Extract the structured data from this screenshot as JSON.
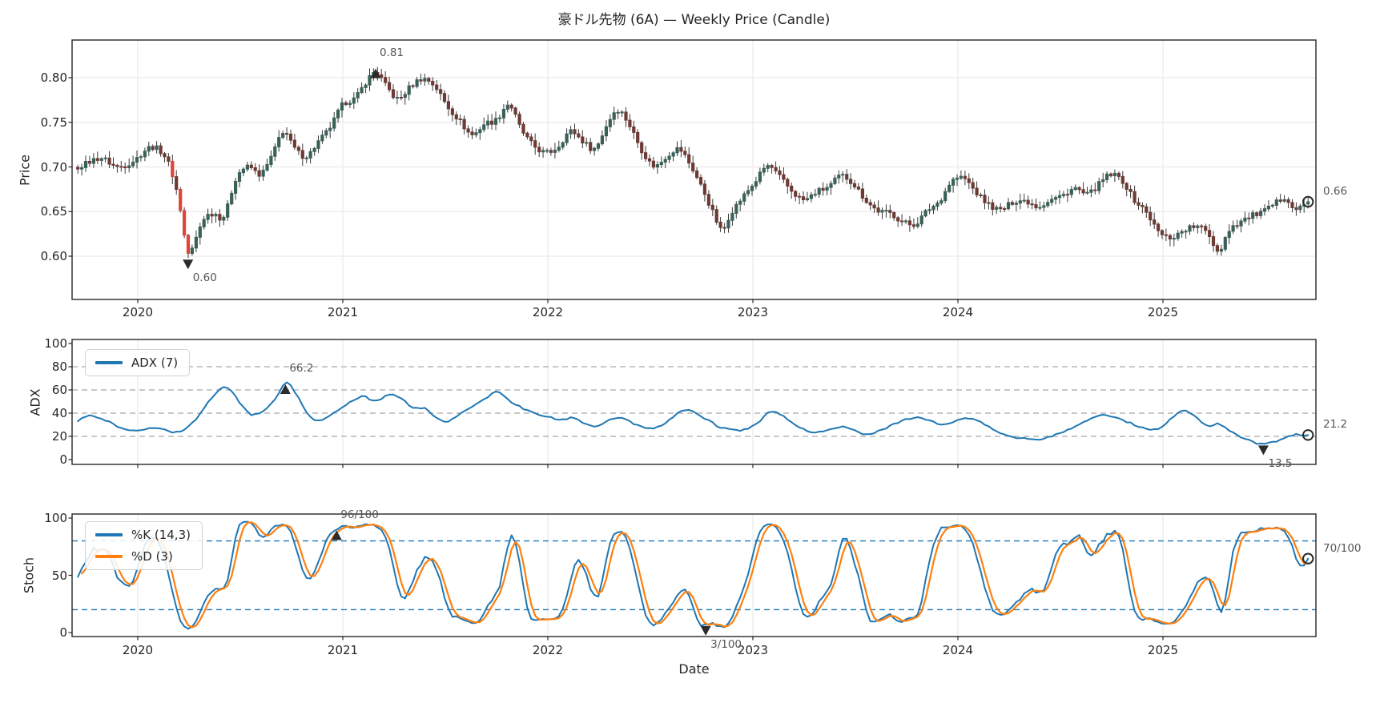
{
  "xlabel": "Date",
  "x_ticks": [
    2020,
    2021,
    2022,
    2023,
    2024,
    2025
  ],
  "colors": {
    "adx_line": "#1f77b4",
    "k_line": "#1f77b4",
    "d_line": "#ff7f0e",
    "candle_up": "#3a6159",
    "candle_down": "#6d3a34",
    "candle_up_bright": "#1fa393",
    "candle_down_bright": "#df4438",
    "wick": "#3a3a3a",
    "frame": "#262626",
    "grid_light": "#eaeaea",
    "grid_dashed": "#a8a8a8",
    "stoch_hline": "#1f77b4",
    "annotation_text": "#555555",
    "marker": "#2b2b2b"
  },
  "chart_data": [
    {
      "panel": "price",
      "type": "candlestick",
      "title": "豪ドル先物 (6A) — Weekly Price (Candle)",
      "ylabel": "Price",
      "freq": "weekly",
      "ylim": [
        0.552,
        0.842
      ],
      "yticks": [
        0.6,
        0.65,
        0.7,
        0.75,
        0.8
      ],
      "x_range_years": [
        2019.7,
        2025.75
      ],
      "anchors": [
        [
          2019.4,
          0.698
        ],
        [
          2019.5,
          0.692
        ],
        [
          2019.58,
          0.7
        ],
        [
          2019.66,
          0.696
        ],
        [
          2019.74,
          0.703
        ],
        [
          2019.82,
          0.71
        ],
        [
          2019.9,
          0.7
        ],
        [
          2019.98,
          0.707
        ],
        [
          2020.06,
          0.722
        ],
        [
          2020.12,
          0.716
        ],
        [
          2020.16,
          0.698
        ],
        [
          2020.2,
          0.662
        ],
        [
          2020.245,
          0.604
        ],
        [
          2020.28,
          0.618
        ],
        [
          2020.32,
          0.642
        ],
        [
          2020.37,
          0.648
        ],
        [
          2020.42,
          0.645
        ],
        [
          2020.48,
          0.688
        ],
        [
          2020.54,
          0.7
        ],
        [
          2020.6,
          0.692
        ],
        [
          2020.66,
          0.715
        ],
        [
          2020.71,
          0.74
        ],
        [
          2020.76,
          0.722
        ],
        [
          2020.82,
          0.712
        ],
        [
          2020.88,
          0.728
        ],
        [
          2020.94,
          0.745
        ],
        [
          2021.0,
          0.77
        ],
        [
          2021.06,
          0.777
        ],
        [
          2021.12,
          0.797
        ],
        [
          2021.16,
          0.806
        ],
        [
          2021.22,
          0.788
        ],
        [
          2021.27,
          0.776
        ],
        [
          2021.33,
          0.79
        ],
        [
          2021.39,
          0.799
        ],
        [
          2021.45,
          0.79
        ],
        [
          2021.51,
          0.768
        ],
        [
          2021.57,
          0.752
        ],
        [
          2021.63,
          0.736
        ],
        [
          2021.69,
          0.748
        ],
        [
          2021.75,
          0.753
        ],
        [
          2021.81,
          0.77
        ],
        [
          2021.87,
          0.742
        ],
        [
          2021.93,
          0.724
        ],
        [
          2021.99,
          0.716
        ],
        [
          2022.05,
          0.723
        ],
        [
          2022.11,
          0.74
        ],
        [
          2022.17,
          0.729
        ],
        [
          2022.23,
          0.721
        ],
        [
          2022.29,
          0.748
        ],
        [
          2022.34,
          0.764
        ],
        [
          2022.4,
          0.746
        ],
        [
          2022.46,
          0.718
        ],
        [
          2022.52,
          0.701
        ],
        [
          2022.58,
          0.712
        ],
        [
          2022.64,
          0.72
        ],
        [
          2022.7,
          0.7
        ],
        [
          2022.76,
          0.673
        ],
        [
          2022.81,
          0.647
        ],
        [
          2022.85,
          0.629
        ],
        [
          2022.89,
          0.648
        ],
        [
          2022.95,
          0.666
        ],
        [
          2023.01,
          0.683
        ],
        [
          2023.07,
          0.701
        ],
        [
          2023.13,
          0.689
        ],
        [
          2023.19,
          0.673
        ],
        [
          2023.25,
          0.663
        ],
        [
          2023.31,
          0.672
        ],
        [
          2023.37,
          0.678
        ],
        [
          2023.43,
          0.69
        ],
        [
          2023.49,
          0.681
        ],
        [
          2023.55,
          0.663
        ],
        [
          2023.61,
          0.651
        ],
        [
          2023.67,
          0.648
        ],
        [
          2023.73,
          0.639
        ],
        [
          2023.79,
          0.636
        ],
        [
          2023.85,
          0.651
        ],
        [
          2023.91,
          0.662
        ],
        [
          2023.97,
          0.684
        ],
        [
          2024.03,
          0.687
        ],
        [
          2024.09,
          0.671
        ],
        [
          2024.15,
          0.658
        ],
        [
          2024.21,
          0.652
        ],
        [
          2024.27,
          0.661
        ],
        [
          2024.33,
          0.662
        ],
        [
          2024.39,
          0.656
        ],
        [
          2024.45,
          0.663
        ],
        [
          2024.51,
          0.668
        ],
        [
          2024.57,
          0.676
        ],
        [
          2024.63,
          0.669
        ],
        [
          2024.69,
          0.681
        ],
        [
          2024.74,
          0.691
        ],
        [
          2024.8,
          0.685
        ],
        [
          2024.86,
          0.663
        ],
        [
          2024.92,
          0.649
        ],
        [
          2024.98,
          0.627
        ],
        [
          2025.04,
          0.621
        ],
        [
          2025.1,
          0.629
        ],
        [
          2025.16,
          0.633
        ],
        [
          2025.22,
          0.626
        ],
        [
          2025.27,
          0.606
        ],
        [
          2025.32,
          0.629
        ],
        [
          2025.38,
          0.639
        ],
        [
          2025.44,
          0.646
        ],
        [
          2025.5,
          0.651
        ],
        [
          2025.56,
          0.661
        ],
        [
          2025.6,
          0.666
        ],
        [
          2025.64,
          0.653
        ],
        [
          2025.68,
          0.656
        ],
        [
          2025.72,
          0.661
        ]
      ],
      "annotations": [
        {
          "text": "0.81",
          "year": 2021.16,
          "value": 0.812,
          "marker": "up"
        },
        {
          "text": "0.60",
          "year": 2020.245,
          "value": 0.598,
          "marker": "down"
        },
        {
          "text": "0.66",
          "value": 0.661,
          "marker": "circle-end"
        }
      ]
    },
    {
      "panel": "adx",
      "type": "line",
      "ylabel": "ADX",
      "ylim": [
        -5,
        105
      ],
      "yticks": [
        0,
        20,
        40,
        60,
        80,
        100
      ],
      "dashed_gridlines": [
        20,
        40,
        60,
        80
      ],
      "series": [
        {
          "name": "ADX (7)",
          "color": "#1f77b4",
          "anchors": [
            [
              2019.4,
              30
            ],
            [
              2019.55,
              32
            ],
            [
              2019.7,
              33
            ],
            [
              2019.76,
              37.5
            ],
            [
              2019.84,
              34
            ],
            [
              2019.92,
              27
            ],
            [
              2020.0,
              24.5
            ],
            [
              2020.06,
              27
            ],
            [
              2020.12,
              26
            ],
            [
              2020.2,
              24
            ],
            [
              2020.28,
              34
            ],
            [
              2020.36,
              53
            ],
            [
              2020.42,
              62
            ],
            [
              2020.46,
              58
            ],
            [
              2020.52,
              44
            ],
            [
              2020.56,
              38.5
            ],
            [
              2020.62,
              43
            ],
            [
              2020.68,
              54
            ],
            [
              2020.72,
              66.2
            ],
            [
              2020.76,
              60
            ],
            [
              2020.82,
              42
            ],
            [
              2020.86,
              34
            ],
            [
              2020.92,
              36
            ],
            [
              2020.98,
              43
            ],
            [
              2021.04,
              50
            ],
            [
              2021.1,
              54.5
            ],
            [
              2021.16,
              50
            ],
            [
              2021.22,
              56
            ],
            [
              2021.28,
              53
            ],
            [
              2021.34,
              45
            ],
            [
              2021.4,
              44
            ],
            [
              2021.46,
              35
            ],
            [
              2021.52,
              33.5
            ],
            [
              2021.58,
              40
            ],
            [
              2021.64,
              47
            ],
            [
              2021.7,
              53
            ],
            [
              2021.75,
              58.5
            ],
            [
              2021.82,
              50
            ],
            [
              2021.88,
              44
            ],
            [
              2021.94,
              40
            ],
            [
              2022.0,
              37
            ],
            [
              2022.06,
              34
            ],
            [
              2022.12,
              36
            ],
            [
              2022.18,
              31
            ],
            [
              2022.24,
              29
            ],
            [
              2022.3,
              34
            ],
            [
              2022.36,
              36
            ],
            [
              2022.42,
              31
            ],
            [
              2022.48,
              27
            ],
            [
              2022.54,
              28
            ],
            [
              2022.6,
              35
            ],
            [
              2022.66,
              42.5
            ],
            [
              2022.72,
              40
            ],
            [
              2022.78,
              34
            ],
            [
              2022.84,
              28
            ],
            [
              2022.9,
              25.5
            ],
            [
              2022.96,
              26
            ],
            [
              2023.02,
              31
            ],
            [
              2023.08,
              41.5
            ],
            [
              2023.14,
              38
            ],
            [
              2023.2,
              31
            ],
            [
              2023.26,
              25
            ],
            [
              2023.32,
              23.5
            ],
            [
              2023.38,
              26.5
            ],
            [
              2023.44,
              28
            ],
            [
              2023.5,
              24.5
            ],
            [
              2023.56,
              21.5
            ],
            [
              2023.62,
              25
            ],
            [
              2023.68,
              30
            ],
            [
              2023.74,
              34
            ],
            [
              2023.8,
              36.5
            ],
            [
              2023.86,
              33.5
            ],
            [
              2023.92,
              30
            ],
            [
              2023.98,
              33
            ],
            [
              2024.04,
              35.5
            ],
            [
              2024.1,
              33
            ],
            [
              2024.16,
              27
            ],
            [
              2024.22,
              21.5
            ],
            [
              2024.28,
              19
            ],
            [
              2024.34,
              18
            ],
            [
              2024.4,
              17.5
            ],
            [
              2024.46,
              20.5
            ],
            [
              2024.52,
              24
            ],
            [
              2024.58,
              29
            ],
            [
              2024.64,
              35
            ],
            [
              2024.7,
              38.5
            ],
            [
              2024.76,
              37
            ],
            [
              2024.82,
              33
            ],
            [
              2024.88,
              28.5
            ],
            [
              2024.94,
              25.5
            ],
            [
              2025.0,
              29
            ],
            [
              2025.06,
              38
            ],
            [
              2025.1,
              42.5
            ],
            [
              2025.16,
              37
            ],
            [
              2025.22,
              29
            ],
            [
              2025.27,
              31
            ],
            [
              2025.33,
              24
            ],
            [
              2025.39,
              19
            ],
            [
              2025.45,
              14.5
            ],
            [
              2025.49,
              13.5
            ],
            [
              2025.55,
              15.5
            ],
            [
              2025.61,
              19.5
            ],
            [
              2025.65,
              22.3
            ],
            [
              2025.69,
              20.5
            ],
            [
              2025.72,
              21.2
            ]
          ]
        }
      ],
      "annotations": [
        {
          "text": "66.2",
          "year": 2020.72,
          "value": 66.2,
          "marker": "up"
        },
        {
          "text": "13.5",
          "year": 2025.49,
          "value": 13.5,
          "marker": "down"
        },
        {
          "text": "21.2",
          "value": 21.2,
          "marker": "circle-end"
        }
      ]
    },
    {
      "panel": "stoch",
      "type": "line",
      "ylabel": "Stoch",
      "ylim": [
        -3.5,
        103.5
      ],
      "yticks": [
        0,
        50,
        100
      ],
      "hlines": [
        20,
        80
      ],
      "computed_from": "price",
      "series": [
        {
          "name": "%K (14,3)",
          "color": "#1f77b4",
          "params": {
            "length": 14,
            "smooth": 3
          }
        },
        {
          "name": "%D (3)",
          "color": "#ff7f0e",
          "params": {
            "smooth": 3
          }
        }
      ],
      "annotations": [
        {
          "text": "96/100",
          "year": 2020.97,
          "marker": "up"
        },
        {
          "text": "3/100",
          "year": 2022.77,
          "marker": "down"
        },
        {
          "text": "70/100",
          "marker": "circle-end"
        }
      ]
    }
  ]
}
